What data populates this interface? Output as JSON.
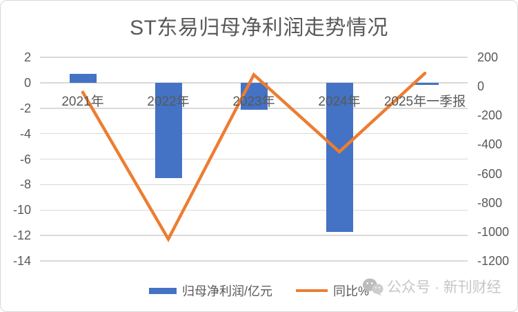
{
  "chart_data": {
    "type": "combo-bar-line",
    "title": "ST东易归母净利润走势情况",
    "categories": [
      "2021年",
      "2022年",
      "2023年",
      "2024年",
      "2025年一季报"
    ],
    "series": [
      {
        "name": "归母净利润/亿元",
        "type": "bar",
        "axis": "left",
        "color": "#4472C4",
        "values": [
          0.7,
          -7.5,
          -2.1,
          -11.7,
          -0.15
        ]
      },
      {
        "name": "同比%",
        "type": "line",
        "axis": "right",
        "color": "#ED7D31",
        "values": [
          -40,
          -1050,
          80,
          -450,
          90
        ]
      }
    ],
    "left_axis": {
      "min": -14,
      "max": 2,
      "step": 2,
      "ticks": [
        2,
        0,
        -2,
        -4,
        -6,
        -8,
        -10,
        -12,
        -14
      ]
    },
    "right_axis": {
      "min": -1200,
      "max": 200,
      "step": 200,
      "ticks": [
        200,
        0,
        -200,
        -400,
        -600,
        -800,
        -1000,
        -1200
      ]
    },
    "grid": true,
    "legend_position": "bottom",
    "xlabel": "",
    "ylabel": ""
  },
  "colors": {
    "bar": "#4472C4",
    "line": "#ED7D31",
    "gridline": "#d9d9d9",
    "axis_text": "#595959",
    "title_text": "#595959",
    "watermark_text": "#c6c6c6",
    "frame_border": "#d7d7d7"
  },
  "watermark": {
    "icon": "wechat-icon",
    "text": "公众号 · 新刊财经"
  }
}
